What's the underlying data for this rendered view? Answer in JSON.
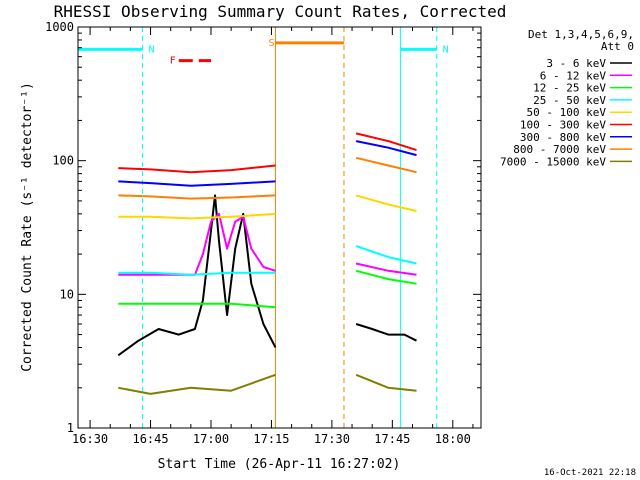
{
  "chart_data": {
    "type": "line",
    "title": "RHESSI Observing Summary Count Rates, Corrected",
    "ylabel": "Corrected Count Rate (s⁻¹ detector⁻¹)",
    "xlabel": "Start Time (26-Apr-11 16:27:02)",
    "footer": "16-Oct-2021 22:18",
    "y_scale": "log",
    "ylim": [
      1,
      1000
    ],
    "y_ticks": [
      "1",
      "10",
      "100",
      "1000"
    ],
    "x_ticks": [
      "16:30",
      "16:45",
      "17:00",
      "17:15",
      "17:30",
      "17:45",
      "18:00"
    ],
    "xlim": [
      "16:27",
      "18:07"
    ],
    "legend_header": [
      "Det 1,3,4,5,6,9,",
      "Att 0"
    ],
    "legend_position": "top-right",
    "series": [
      {
        "name": "3 - 6 keV",
        "color": "#000000",
        "segments": [
          {
            "x": [
              "16:37",
              "16:42",
              "16:47",
              "16:52",
              "16:56",
              "16:58",
              "17:00",
              "17:01",
              "17:02",
              "17:04",
              "17:06",
              "17:08",
              "17:10",
              "17:13",
              "17:16"
            ],
            "y": [
              3.5,
              4.5,
              5.5,
              5,
              5.5,
              9,
              30,
              55,
              25,
              7,
              22,
              40,
              12,
              6,
              4
            ]
          },
          {
            "x": [
              "17:36",
              "17:40",
              "17:44",
              "17:48",
              "17:51"
            ],
            "y": [
              6,
              5.5,
              5,
              5,
              4.5
            ]
          }
        ]
      },
      {
        "name": "6 - 12 keV",
        "color": "#ff00ff",
        "segments": [
          {
            "x": [
              "16:37",
              "16:45",
              "16:52",
              "16:56",
              "16:58",
              "17:00",
              "17:02",
              "17:04",
              "17:06",
              "17:08",
              "17:10",
              "17:13",
              "17:16"
            ],
            "y": [
              14,
              14,
              14,
              14,
              20,
              35,
              40,
              22,
              35,
              38,
              22,
              16,
              15
            ]
          },
          {
            "x": [
              "17:36",
              "17:44",
              "17:51"
            ],
            "y": [
              17,
              15,
              14
            ]
          }
        ]
      },
      {
        "name": "12 - 25 keV",
        "color": "#00ff00",
        "segments": [
          {
            "x": [
              "16:37",
              "16:45",
              "16:55",
              "17:05",
              "17:16"
            ],
            "y": [
              8.5,
              8.5,
              8.5,
              8.5,
              8
            ]
          },
          {
            "x": [
              "17:36",
              "17:44",
              "17:51"
            ],
            "y": [
              15,
              13,
              12
            ]
          }
        ]
      },
      {
        "name": "25 - 50 keV",
        "color": "#00ffff",
        "segments": [
          {
            "x": [
              "16:37",
              "16:45",
              "16:55",
              "17:05",
              "17:16"
            ],
            "y": [
              14.5,
              14.5,
              14,
              14.5,
              14.5
            ]
          },
          {
            "x": [
              "17:36",
              "17:44",
              "17:51"
            ],
            "y": [
              23,
              19,
              17
            ]
          }
        ]
      },
      {
        "name": "50 - 100 keV",
        "color": "#ffd700",
        "segments": [
          {
            "x": [
              "16:37",
              "16:45",
              "16:55",
              "17:05",
              "17:16"
            ],
            "y": [
              38,
              38,
              37,
              38,
              40
            ]
          },
          {
            "x": [
              "17:36",
              "17:44",
              "17:51"
            ],
            "y": [
              55,
              47,
              42
            ]
          }
        ]
      },
      {
        "name": "100 - 300 keV",
        "color": "#ff0000",
        "segments": [
          {
            "x": [
              "16:37",
              "16:45",
              "16:55",
              "17:05",
              "17:16"
            ],
            "y": [
              88,
              86,
              82,
              85,
              92
            ]
          },
          {
            "x": [
              "17:36",
              "17:44",
              "17:51"
            ],
            "y": [
              160,
              140,
              120
            ]
          }
        ]
      },
      {
        "name": "300 - 800 keV",
        "color": "#0000ff",
        "segments": [
          {
            "x": [
              "16:37",
              "16:45",
              "16:55",
              "17:05",
              "17:16"
            ],
            "y": [
              70,
              68,
              65,
              67,
              70
            ]
          },
          {
            "x": [
              "17:36",
              "17:44",
              "17:51"
            ],
            "y": [
              140,
              125,
              110
            ]
          }
        ]
      },
      {
        "name": "800 - 7000 keV",
        "color": "#ff8000",
        "segments": [
          {
            "x": [
              "16:37",
              "16:45",
              "16:55",
              "17:05",
              "17:16"
            ],
            "y": [
              55,
              54,
              52,
              53,
              55
            ]
          },
          {
            "x": [
              "17:36",
              "17:44",
              "17:51"
            ],
            "y": [
              105,
              92,
              82
            ]
          }
        ]
      },
      {
        "name": "7000 - 15000 keV",
        "color": "#808000",
        "segments": [
          {
            "x": [
              "16:37",
              "16:45",
              "16:55",
              "17:05",
              "17:16"
            ],
            "y": [
              2,
              1.8,
              2,
              1.9,
              2.5
            ]
          },
          {
            "x": [
              "17:36",
              "17:44",
              "17:51"
            ],
            "y": [
              2.5,
              2,
              1.9
            ]
          }
        ]
      }
    ],
    "flags": [
      {
        "label": "N",
        "color": "#00ffff",
        "segments": [
          [
            "16:27",
            "16:43"
          ],
          [
            "17:47",
            "17:56"
          ]
        ],
        "level": 680
      },
      {
        "label": "S",
        "color": "#ff8000",
        "segments": [
          [
            "17:16",
            "17:33"
          ]
        ],
        "level": 760
      },
      {
        "label": "F",
        "color": "#ff0000",
        "dashed": true,
        "segments": [
          [
            "16:52",
            "17:00"
          ]
        ],
        "level": 560
      }
    ],
    "markers": [
      {
        "time": "16:27",
        "color": "#00ffff",
        "style": "solid"
      },
      {
        "time": "16:43",
        "color": "#00ffff",
        "style": "dashed"
      },
      {
        "time": "17:16",
        "color": "#ff8000",
        "style": "solid"
      },
      {
        "time": "17:33",
        "color": "#ff8000",
        "style": "dashed"
      },
      {
        "time": "17:47",
        "color": "#00ffff",
        "style": "solid"
      },
      {
        "time": "17:56",
        "color": "#00ffff",
        "style": "dashed"
      }
    ]
  }
}
